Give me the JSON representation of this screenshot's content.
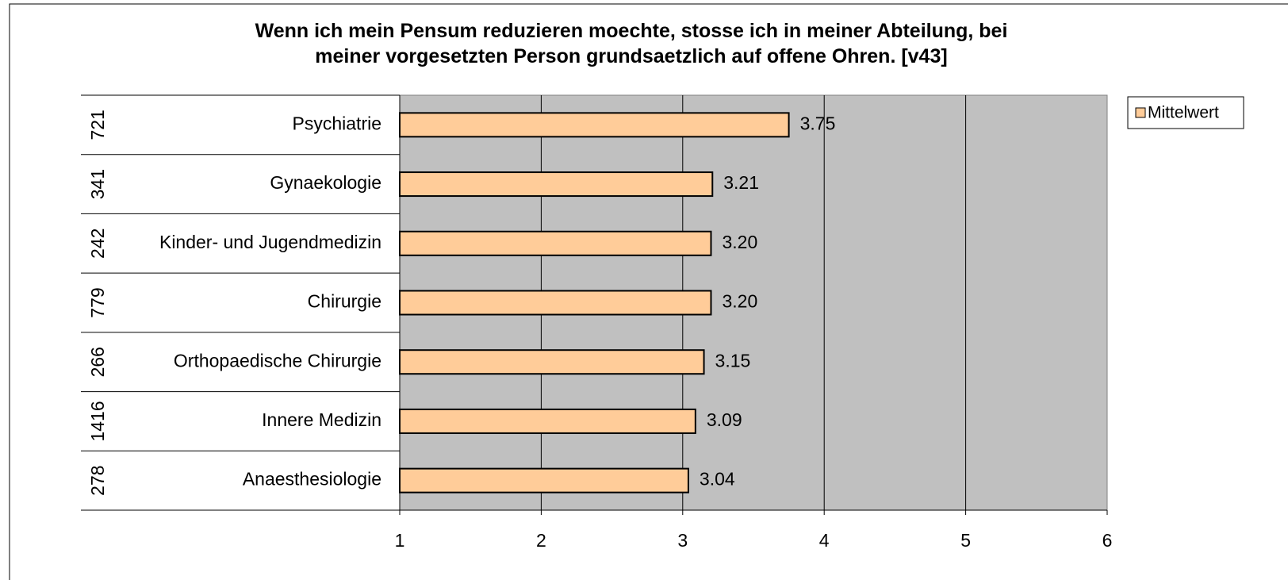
{
  "chart_data": {
    "type": "bar",
    "orientation": "horizontal",
    "title": "Wenn ich mein Pensum reduzieren moechte, stosse ich in meiner Abteilung, bei meiner vorgesetzten Person grundsaetzlich auf offene Ohren. [v43]",
    "categories": [
      "Psychiatrie",
      "Gynaekologie",
      "Kinder- und Jugendmedizin",
      "Chirurgie",
      "Orthopaedische Chirurgie",
      "Innere Medizin",
      "Anaesthesiologie"
    ],
    "group_counts": [
      721,
      341,
      242,
      779,
      266,
      1416,
      278
    ],
    "series": [
      {
        "name": "Mittelwert",
        "color": "#ffcc99",
        "values": [
          3.75,
          3.21,
          3.2,
          3.2,
          3.15,
          3.09,
          3.04
        ],
        "value_labels": [
          "3.75",
          "3.21",
          "3.20",
          "3.20",
          "3.15",
          "3.09",
          "3.04"
        ]
      }
    ],
    "xlim": [
      1,
      6
    ],
    "xticks": [
      1,
      2,
      3,
      4,
      5,
      6
    ],
    "grid": true,
    "legend": "right"
  }
}
